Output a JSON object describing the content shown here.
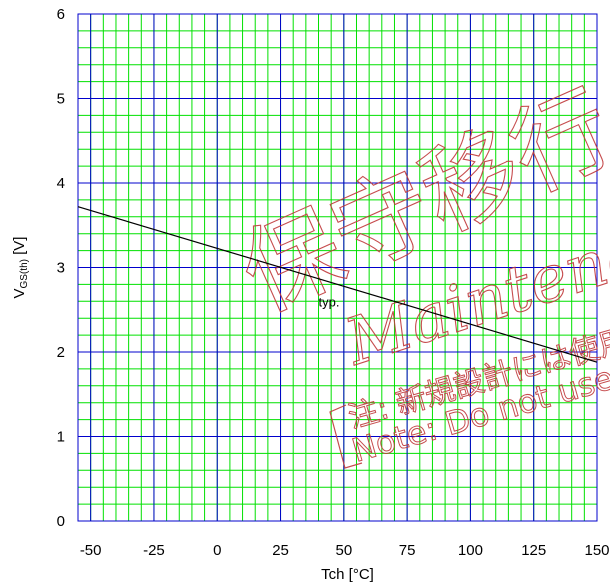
{
  "chart_data": {
    "type": "line",
    "title": "",
    "xlabel": "Tch [°C]",
    "ylabel_main": "V",
    "ylabel_sub": "GS(th)",
    "ylabel_unit": " [V]",
    "xlim": [
      -55,
      150
    ],
    "ylim": [
      0,
      6
    ],
    "x_ticks": [
      -50,
      -25,
      0,
      25,
      50,
      75,
      100,
      125,
      150
    ],
    "y_ticks": [
      0,
      1,
      2,
      3,
      4,
      5,
      6
    ],
    "grid": true,
    "series": [
      {
        "x": [
          -55,
          150
        ],
        "y": [
          3.72,
          1.88
        ]
      }
    ],
    "annotations": [
      {
        "text": "typ.",
        "x": 40,
        "y": 2.6
      }
    ]
  },
  "watermark": {
    "kanji": "保守移行",
    "roman": "Maintenance",
    "jp_note": "注: 新規設計には使用しないでください",
    "en_note": "Note: Do not use this for new design",
    "color": "#c0393b"
  },
  "colors": {
    "minor_grid": "#00e000",
    "major_grid": "#0000cc",
    "line": "#000000"
  }
}
